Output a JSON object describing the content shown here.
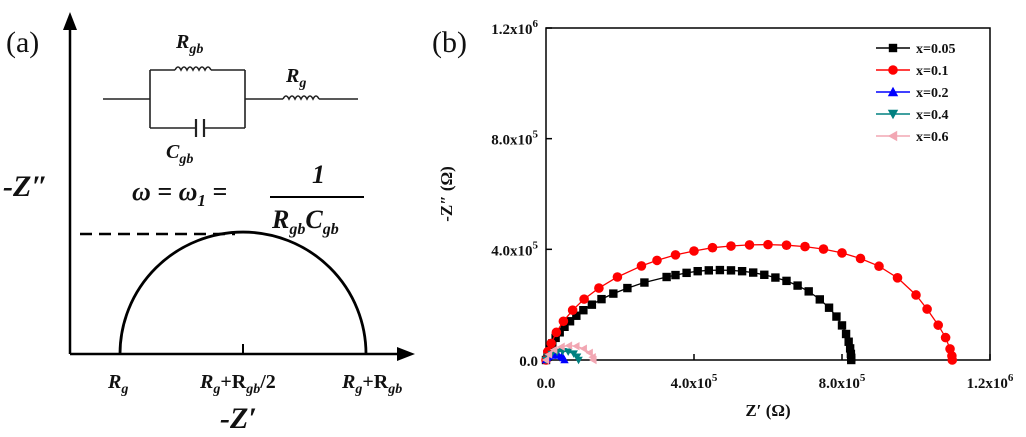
{
  "panel_a": {
    "label": "(a)",
    "circuit": {
      "r_gb": {
        "main": "R",
        "sub": "gb"
      },
      "r_g": {
        "main": "R",
        "sub": "g"
      },
      "c_gb": {
        "main": "C",
        "sub": "gb"
      }
    },
    "y_axis_label": "-Z″",
    "x_axis_label": "-Z′",
    "equation": {
      "lhs": "ω = ω",
      "lhs_sub": "1",
      "eq": " = ",
      "numerator": "1",
      "den_r": "R",
      "den_r_sub": "gb",
      "den_c": "C",
      "den_c_sub": "gb"
    },
    "x_ticks": [
      {
        "main": "R",
        "sub": "g",
        "rest": ""
      },
      {
        "main": "R",
        "sub": "g",
        "rest": "+R",
        "sub2": "gb",
        "tail": "/2"
      },
      {
        "main": "R",
        "sub": "g",
        "rest": "+R",
        "sub2": "gb",
        "tail": ""
      }
    ]
  },
  "panel_b": {
    "label": "(b)"
  },
  "chart_data": {
    "type": "scatter",
    "xlabel": "Z′ (Ω)",
    "ylabel": "-Z″ (Ω)",
    "xlim": [
      0,
      1200000
    ],
    "ylim": [
      0,
      1200000
    ],
    "x_ticks": [
      {
        "value": 0,
        "mant": "0.0",
        "exp": ""
      },
      {
        "value": 400000,
        "mant": "4.0x10",
        "exp": "5"
      },
      {
        "value": 800000,
        "mant": "8.0x10",
        "exp": "5"
      },
      {
        "value": 1200000,
        "mant": "1.2x10",
        "exp": "6"
      }
    ],
    "y_ticks": [
      {
        "value": 0,
        "mant": "0.0",
        "exp": ""
      },
      {
        "value": 400000,
        "mant": "4.0x10",
        "exp": "5"
      },
      {
        "value": 800000,
        "mant": "8.0x10",
        "exp": "5"
      },
      {
        "value": 1200000,
        "mant": "1.2x10",
        "exp": "6"
      }
    ],
    "legend_position": "top-right",
    "series": [
      {
        "name": "x=0.05",
        "color": "#000000",
        "marker": "square",
        "points": [
          [
            0,
            0
          ],
          [
            4000,
            21000
          ],
          [
            10000,
            40000
          ],
          [
            17000,
            60000
          ],
          [
            26000,
            80000
          ],
          [
            37000,
            100000
          ],
          [
            50000,
            120000
          ],
          [
            65000,
            140000
          ],
          [
            82000,
            160000
          ],
          [
            101000,
            180000
          ],
          [
            124000,
            200000
          ],
          [
            150000,
            220000
          ],
          [
            182000,
            240000
          ],
          [
            220000,
            260000
          ],
          [
            266000,
            280000
          ],
          [
            326000,
            300000
          ],
          [
            350000,
            307000
          ],
          [
            380000,
            315000
          ],
          [
            410000,
            321000
          ],
          [
            440000,
            324000
          ],
          [
            470000,
            325000
          ],
          [
            500000,
            324000
          ],
          [
            530000,
            321000
          ],
          [
            560000,
            316000
          ],
          [
            590000,
            308000
          ],
          [
            620000,
            298000
          ],
          [
            650000,
            286000
          ],
          [
            680000,
            269000
          ],
          [
            710000,
            248000
          ],
          [
            740000,
            219000
          ],
          [
            765000,
            189000
          ],
          [
            785000,
            157000
          ],
          [
            800000,
            125000
          ],
          [
            811000,
            94000
          ],
          [
            818000,
            66000
          ],
          [
            822000,
            42000
          ],
          [
            824000,
            22000
          ],
          [
            825000,
            8000
          ],
          [
            825000,
            0
          ]
        ]
      },
      {
        "name": "x=0.1",
        "color": "#ff0000",
        "marker": "circle",
        "points": [
          [
            0,
            0
          ],
          [
            5000,
            30000
          ],
          [
            14000,
            60000
          ],
          [
            28000,
            100000
          ],
          [
            47000,
            140000
          ],
          [
            72000,
            180000
          ],
          [
            103000,
            220000
          ],
          [
            143000,
            260000
          ],
          [
            193000,
            300000
          ],
          [
            258000,
            340000
          ],
          [
            300000,
            360000
          ],
          [
            350000,
            380000
          ],
          [
            400000,
            394000
          ],
          [
            450000,
            406000
          ],
          [
            500000,
            412000
          ],
          [
            550000,
            416000
          ],
          [
            600000,
            417000
          ],
          [
            650000,
            415000
          ],
          [
            700000,
            410000
          ],
          [
            750000,
            401000
          ],
          [
            800000,
            387000
          ],
          [
            850000,
            367000
          ],
          [
            900000,
            339000
          ],
          [
            950000,
            297000
          ],
          [
            1000000,
            235000
          ],
          [
            1030000,
            184000
          ],
          [
            1060000,
            126000
          ],
          [
            1080000,
            81000
          ],
          [
            1092000,
            40000
          ],
          [
            1097000,
            15000
          ],
          [
            1098000,
            0
          ]
        ]
      },
      {
        "name": "x=0.2",
        "color": "#0000ff",
        "marker": "triangle-up",
        "points": [
          [
            0,
            0
          ],
          [
            3000,
            7000
          ],
          [
            8000,
            12000
          ],
          [
            16000,
            16000
          ],
          [
            25000,
            17000
          ],
          [
            34000,
            16000
          ],
          [
            42000,
            12000
          ],
          [
            47000,
            7000
          ],
          [
            50000,
            0
          ]
        ]
      },
      {
        "name": "x=0.4",
        "color": "#008080",
        "marker": "triangle-down",
        "points": [
          [
            0,
            0
          ],
          [
            5000,
            12000
          ],
          [
            15000,
            22000
          ],
          [
            30000,
            29000
          ],
          [
            45000,
            32000
          ],
          [
            60000,
            30000
          ],
          [
            75000,
            23000
          ],
          [
            84000,
            12000
          ],
          [
            88000,
            0
          ]
        ]
      },
      {
        "name": "x=0.6",
        "color": "#f2a7b3",
        "marker": "triangle-left",
        "points": [
          [
            0,
            0
          ],
          [
            8000,
            20000
          ],
          [
            22000,
            37000
          ],
          [
            42000,
            48000
          ],
          [
            62000,
            52000
          ],
          [
            82000,
            50000
          ],
          [
            102000,
            41000
          ],
          [
            118000,
            26000
          ],
          [
            126000,
            10000
          ],
          [
            128000,
            0
          ]
        ]
      }
    ]
  }
}
